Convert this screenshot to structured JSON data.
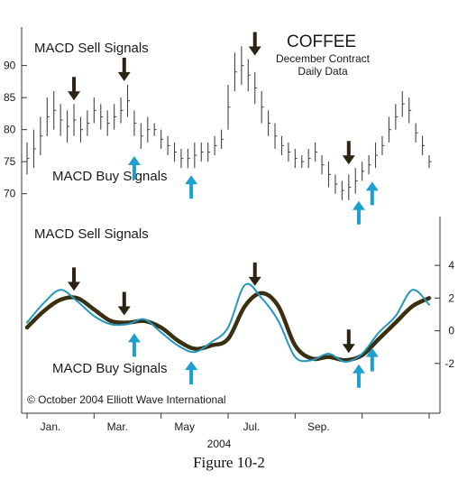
{
  "caption": "Figure 10-2",
  "chart_data": [
    {
      "type": "ohlc",
      "title": "COFFEE",
      "subtitle": [
        "December Contract",
        "Daily Data"
      ],
      "y_ticks": [
        70,
        75,
        80,
        85,
        90
      ],
      "ylim": [
        67,
        96
      ],
      "annotations": {
        "sell": "MACD Sell Signals",
        "buy": "MACD Buy Signals"
      },
      "ohlc_ranges": [
        [
          0,
          73,
          78
        ],
        [
          0.2,
          74,
          80
        ],
        [
          0.4,
          76,
          82
        ],
        [
          0.6,
          79,
          85
        ],
        [
          0.8,
          80,
          86
        ],
        [
          1.0,
          79,
          84
        ],
        [
          1.2,
          78,
          83
        ],
        [
          1.4,
          79,
          84
        ],
        [
          1.6,
          78,
          82
        ],
        [
          1.8,
          79,
          83
        ],
        [
          2.0,
          81,
          85
        ],
        [
          2.2,
          80,
          84
        ],
        [
          2.4,
          79,
          83
        ],
        [
          2.6,
          80,
          84
        ],
        [
          2.8,
          81,
          85
        ],
        [
          3.0,
          82,
          87
        ],
        [
          3.2,
          79,
          83
        ],
        [
          3.4,
          77,
          81
        ],
        [
          3.6,
          78,
          82
        ],
        [
          3.8,
          79,
          81
        ],
        [
          4.0,
          77,
          80
        ],
        [
          4.2,
          76,
          79
        ],
        [
          4.4,
          75,
          78
        ],
        [
          4.6,
          74,
          77
        ],
        [
          4.8,
          74,
          77
        ],
        [
          5.0,
          74,
          78
        ],
        [
          5.2,
          75,
          78
        ],
        [
          5.4,
          75,
          78
        ],
        [
          5.6,
          76,
          79
        ],
        [
          5.8,
          77,
          80
        ],
        [
          6.0,
          80,
          87
        ],
        [
          6.2,
          86,
          92
        ],
        [
          6.4,
          87,
          93
        ],
        [
          6.6,
          86,
          91
        ],
        [
          6.8,
          84,
          89
        ],
        [
          7.0,
          81,
          86
        ],
        [
          7.2,
          79,
          83
        ],
        [
          7.4,
          77,
          81
        ],
        [
          7.6,
          76,
          79
        ],
        [
          7.8,
          75,
          78
        ],
        [
          8.0,
          74,
          77
        ],
        [
          8.2,
          74,
          76
        ],
        [
          8.4,
          74,
          77
        ],
        [
          8.6,
          75,
          78
        ],
        [
          8.8,
          73,
          76
        ],
        [
          9.0,
          71,
          75
        ],
        [
          9.2,
          70,
          73
        ],
        [
          9.4,
          69,
          72
        ],
        [
          9.6,
          69,
          73
        ],
        [
          9.8,
          70,
          74
        ],
        [
          10.0,
          72,
          75
        ],
        [
          10.2,
          73,
          76
        ],
        [
          10.4,
          74,
          78
        ],
        [
          10.6,
          76,
          79
        ],
        [
          10.8,
          78,
          82
        ],
        [
          11.0,
          80,
          84
        ],
        [
          11.2,
          82,
          86
        ],
        [
          11.4,
          81,
          85
        ],
        [
          11.6,
          78,
          81
        ],
        [
          11.8,
          76,
          79
        ],
        [
          12.0,
          74,
          76
        ]
      ],
      "sell_signal_x": [
        1.4,
        2.9,
        6.8,
        9.6
      ],
      "buy_signal_x": [
        3.2,
        4.9,
        9.9,
        10.3
      ],
      "x_ticks": [
        "Jan.",
        "Mar.",
        "May",
        "Jul.",
        "Sep."
      ],
      "x_sublabel": "2004"
    },
    {
      "type": "line",
      "y_ticks": [
        -2,
        0,
        2,
        4
      ],
      "ylim": [
        -3.5,
        5
      ],
      "annotations": {
        "sell": "MACD Sell Signals",
        "buy": "MACD Buy Signals"
      },
      "series": [
        {
          "color": "#3a2f10",
          "x": [
            0,
            0.5,
            1.0,
            1.5,
            2.0,
            2.5,
            3.0,
            3.5,
            4.0,
            4.5,
            5.0,
            5.5,
            6.0,
            6.5,
            7.0,
            7.5,
            8.0,
            8.5,
            9.0,
            9.5,
            10.0,
            10.5,
            11.0,
            11.5,
            12.0
          ],
          "values": [
            0.2,
            1.2,
            1.9,
            2.0,
            1.3,
            0.6,
            0.5,
            0.6,
            0.2,
            -0.6,
            -1.1,
            -0.9,
            -0.5,
            1.5,
            2.3,
            1.5,
            -0.9,
            -1.7,
            -1.6,
            -1.8,
            -1.5,
            -0.5,
            0.5,
            1.5,
            2.0
          ]
        },
        {
          "color": "#2596be",
          "x": [
            0,
            0.5,
            1.0,
            1.5,
            2.0,
            2.5,
            3.0,
            3.5,
            4.0,
            4.5,
            5.0,
            5.5,
            6.0,
            6.5,
            7.0,
            7.5,
            8.0,
            8.5,
            9.0,
            9.5,
            10.0,
            10.5,
            11.0,
            11.5,
            12.0
          ],
          "values": [
            0.5,
            1.7,
            2.5,
            1.8,
            0.9,
            0.4,
            0.4,
            0.7,
            -0.1,
            -0.9,
            -1.3,
            -0.7,
            0.2,
            2.8,
            2.0,
            0.6,
            -1.6,
            -1.8,
            -1.4,
            -1.9,
            -1.4,
            -0.1,
            0.9,
            2.5,
            1.6
          ]
        }
      ],
      "sell_signal_x": [
        1.4,
        2.9,
        6.8,
        9.6
      ],
      "buy_signal_x": [
        3.2,
        4.9,
        9.9,
        10.3
      ],
      "copyright": "© October 2004 Elliott Wave International"
    }
  ]
}
